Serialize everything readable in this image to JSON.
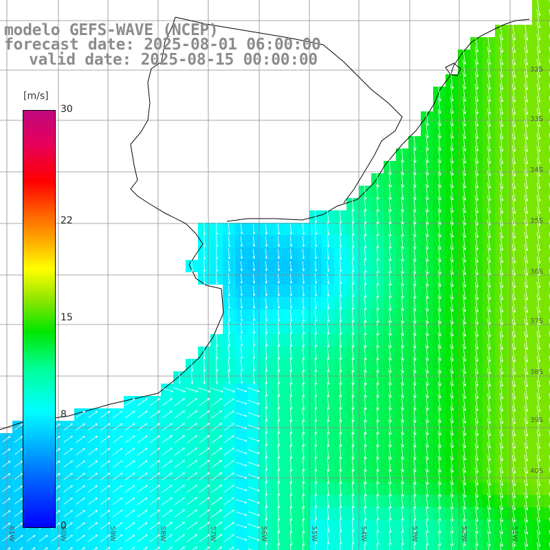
{
  "map": {
    "title_line1": "modelo GEFS-WAVE (NCEP)",
    "title_line2": "forecast date: 2025-08-01 06:00:00",
    "title_line3": "valid date: 2025-08-15 00:00:00",
    "variable_unit": "[m/s]",
    "colorbar_labels": [
      "30",
      "22",
      "15",
      "8",
      "0"
    ],
    "colorbar_values": [
      30,
      22,
      15,
      8,
      0
    ],
    "longitude_labels": [
      "61W",
      "60W",
      "59W",
      "58W",
      "57W",
      "56W",
      "55W",
      "54W",
      "53W",
      "52W",
      "51W"
    ],
    "latitude_labels": [
      "32S",
      "33S",
      "34S",
      "35S",
      "36S",
      "37S",
      "38S",
      "39S",
      "40S"
    ],
    "colors": {
      "land": "#ffffff",
      "coast": "#000000",
      "grid": "#8a8a8a",
      "arrow": "#ffffff",
      "title": "#8c8c8c"
    }
  }
}
